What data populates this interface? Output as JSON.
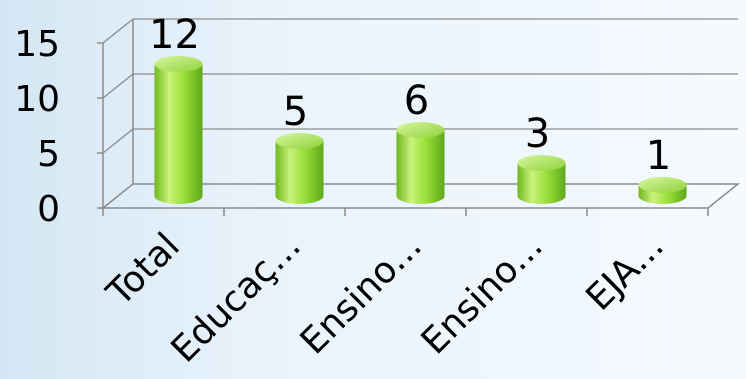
{
  "chart_data": {
    "type": "bar",
    "categories": [
      "Total",
      "Educaç...",
      "Ensino...",
      "Ensino...",
      "EJA..."
    ],
    "values": [
      12,
      5,
      6,
      3,
      1
    ],
    "data_labels": [
      "12",
      "5",
      "6",
      "3",
      "1"
    ],
    "ytick_labels": [
      "0",
      "5",
      "10",
      "15"
    ],
    "ylim": [
      0,
      15
    ],
    "yticks": [
      0,
      5,
      10,
      15
    ],
    "grid": true,
    "legend": "none",
    "style": "3d-cylinder",
    "colors": {
      "bar_light": "#d8f7a0",
      "bar_mid": "#9be03a",
      "bar_dark": "#5fa81a",
      "axis": "#808080",
      "grid": "#8c8c8c"
    }
  }
}
